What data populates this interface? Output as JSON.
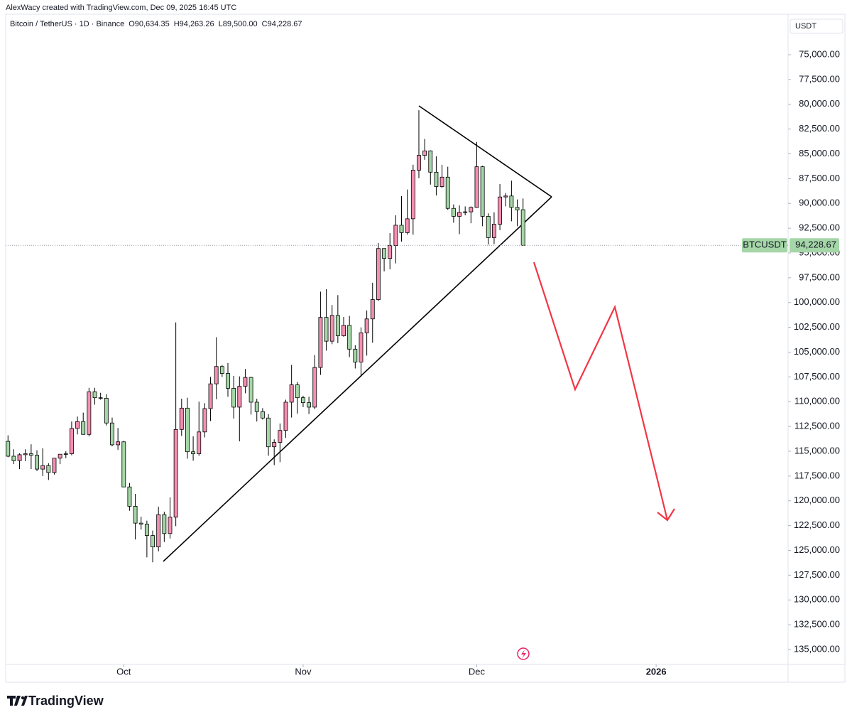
{
  "attribution": "AlexWacy created with TradingView.com, Dec 09, 2025 16:45 UTC",
  "brand": "TradingView",
  "chart_data": {
    "type": "candlestick",
    "title": "Bitcoin / TetherUS · 1D · Binance",
    "header_ohlc": [
      "O90,634.35",
      "H94,263.26",
      "L89,500.00",
      "C94,228.67"
    ],
    "currency": "USDT",
    "last_price": {
      "symbol": "BTCUSDT",
      "label": "94,228.67"
    },
    "up_color": "#a5d6a7",
    "down_color": "#f48fb1",
    "inverted": true,
    "open": [
      114000,
      115500,
      115950,
      115350,
      115250,
      115400,
      116800,
      116450,
      117150,
      115700,
      115300,
      115250,
      112700,
      112000,
      113300,
      109000,
      109600,
      109650,
      112150,
      114350,
      114050,
      118600,
      120550,
      122250,
      122350,
      123500,
      124650,
      121400,
      123300,
      121650,
      112800,
      110650,
      115050,
      115250,
      113050,
      110700,
      108200,
      106450,
      107150,
      108650,
      110550,
      108450,
      107550,
      110050,
      111000,
      111650,
      114550,
      114100,
      112900,
      110050,
      108300,
      109600,
      110100,
      110550,
      106550,
      101500,
      103900,
      101300,
      103350,
      102300,
      104700,
      106000,
      103050,
      101650,
      99700,
      94550,
      95550,
      94250,
      92200,
      92950,
      91550,
      86650,
      85150,
      84700,
      86850,
      88300,
      87350,
      90500,
      91300,
      90900,
      90850,
      90400,
      86300,
      91300,
      93450,
      92100,
      89350,
      89250,
      90400,
      90634.35
    ],
    "high": [
      115600,
      116300,
      116800,
      116000,
      116800,
      117000,
      117500,
      117900,
      117350,
      116300,
      115700,
      115400,
      113300,
      113300,
      113500,
      110300,
      109800,
      112400,
      114500,
      114850,
      118600,
      121000,
      123900,
      122900,
      125700,
      126200,
      125100,
      124150,
      123800,
      122550,
      113450,
      115750,
      115950,
      115450,
      113600,
      111950,
      109750,
      107500,
      109500,
      111700,
      114000,
      109150,
      111300,
      112000,
      111800,
      115450,
      116400,
      116100,
      113650,
      111600,
      111200,
      110550,
      111250,
      110750,
      107300,
      104850,
      104200,
      104100,
      103450,
      105500,
      106650,
      107500,
      105350,
      104050,
      99850,
      96850,
      96650,
      96050,
      93850,
      93150,
      93150,
      87450,
      85600,
      88100,
      89200,
      88450,
      90650,
      91950,
      93100,
      91200,
      92000,
      90450,
      92300,
      94150,
      94100,
      92700,
      90300,
      91800,
      92300,
      94263.26
    ],
    "low": [
      113400,
      114800,
      115200,
      114800,
      114300,
      114900,
      114700,
      116200,
      115700,
      115300,
      115000,
      112000,
      111500,
      111100,
      108600,
      108600,
      109100,
      109250,
      111600,
      112650,
      113950,
      118200,
      119300,
      121600,
      122000,
      123000,
      120600,
      121100,
      119650,
      102000,
      109700,
      109600,
      113500,
      110000,
      110150,
      107500,
      103500,
      106300,
      106100,
      107400,
      107450,
      106700,
      107500,
      109700,
      110650,
      111250,
      113800,
      112200,
      109800,
      106300,
      108000,
      109400,
      109500,
      105300,
      98900,
      98650,
      100250,
      99250,
      101450,
      101350,
      104300,
      102500,
      100800,
      98000,
      94000,
      94550,
      93000,
      91200,
      89250,
      88600,
      86100,
      80600,
      83500,
      84650,
      85250,
      86100,
      86300,
      90100,
      90200,
      90300,
      90300,
      83800,
      86200,
      91000,
      90900,
      88050,
      88950,
      87700,
      89600,
      89500
    ],
    "close": [
      115500,
      115950,
      115350,
      115250,
      115400,
      116800,
      116450,
      117150,
      115700,
      115300,
      115250,
      112700,
      112000,
      113300,
      109000,
      109600,
      109650,
      112150,
      114350,
      114050,
      118600,
      120550,
      122250,
      122350,
      123500,
      124650,
      121400,
      123300,
      121650,
      112800,
      110650,
      115050,
      115250,
      113050,
      110700,
      108200,
      106450,
      107150,
      108650,
      110550,
      108450,
      107550,
      110050,
      111000,
      111650,
      114550,
      114100,
      112900,
      110050,
      108300,
      109600,
      110100,
      110550,
      106550,
      101500,
      103900,
      101300,
      103350,
      102300,
      104700,
      106000,
      103050,
      101650,
      99700,
      94550,
      95550,
      94250,
      92200,
      92950,
      91550,
      86650,
      85150,
      84700,
      86850,
      88300,
      87350,
      90500,
      91300,
      90900,
      90850,
      90400,
      86300,
      91300,
      93450,
      92100,
      89350,
      89250,
      90400,
      90650,
      94228.67
    ],
    "xlim": [
      -0.4,
      134.8
    ],
    "xticks": [
      {
        "value": 20,
        "label": "Oct"
      },
      {
        "value": 51,
        "label": "Nov"
      },
      {
        "value": 81,
        "label": "Dec"
      },
      {
        "value": 112,
        "label": "2026"
      }
    ],
    "ylim": [
      70914,
      136505
    ],
    "yticks": [
      {
        "value": 75000,
        "label": "75,000.00"
      },
      {
        "value": 77500,
        "label": "77,500.00"
      },
      {
        "value": 80000,
        "label": "80,000.00"
      },
      {
        "value": 82500,
        "label": "82,500.00"
      },
      {
        "value": 85000,
        "label": "85,000.00"
      },
      {
        "value": 87500,
        "label": "87,500.00"
      },
      {
        "value": 90000,
        "label": "90,000.00"
      },
      {
        "value": 92500,
        "label": "92,500.00"
      },
      {
        "value": 95000,
        "label": "95,000.00"
      },
      {
        "value": 97500,
        "label": "97,500.00"
      },
      {
        "value": 100000,
        "label": "100,000.00"
      },
      {
        "value": 102500,
        "label": "102,500.00"
      },
      {
        "value": 105000,
        "label": "105,000.00"
      },
      {
        "value": 107500,
        "label": "107,500.00"
      },
      {
        "value": 110000,
        "label": "110,000.00"
      },
      {
        "value": 112500,
        "label": "112,500.00"
      },
      {
        "value": 115000,
        "label": "115,000.00"
      },
      {
        "value": 117500,
        "label": "117,500.00"
      },
      {
        "value": 120000,
        "label": "120,000.00"
      },
      {
        "value": 122500,
        "label": "122,500.00"
      },
      {
        "value": 125000,
        "label": "125,000.00"
      },
      {
        "value": 127500,
        "label": "127,500.00"
      },
      {
        "value": 130000,
        "label": "130,000.00"
      },
      {
        "value": 132500,
        "label": "132,500.00"
      },
      {
        "value": 135000,
        "label": "135,000.00"
      }
    ]
  }
}
